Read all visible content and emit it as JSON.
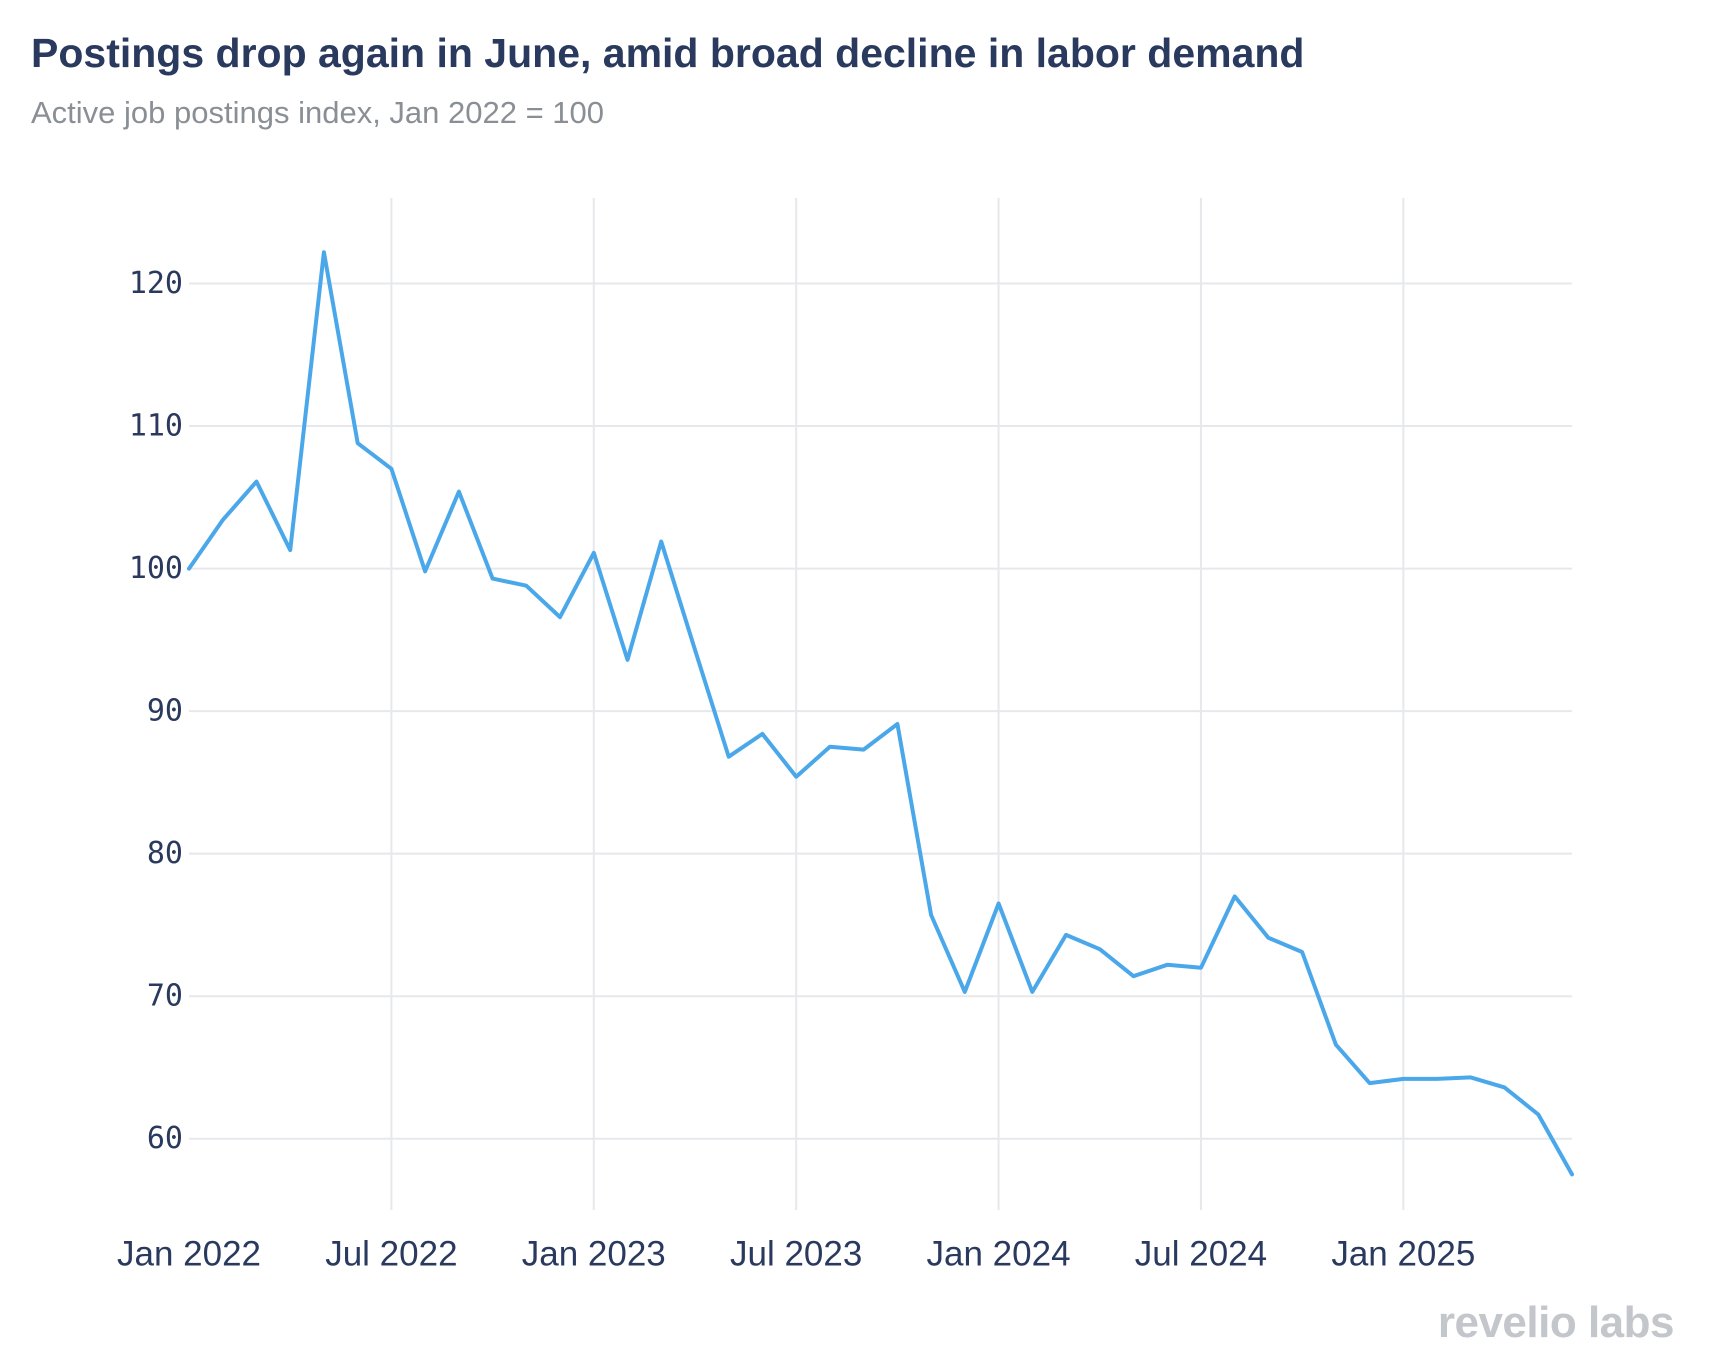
{
  "chart_data": {
    "type": "line",
    "title": "Postings drop again in June, amid broad decline in labor demand",
    "subtitle": "Active job postings index, Jan 2022 = 100",
    "xlabel": "",
    "ylabel": "",
    "x": [
      "2022-01",
      "2022-02",
      "2022-03",
      "2022-04",
      "2022-05",
      "2022-06",
      "2022-07",
      "2022-08",
      "2022-09",
      "2022-10",
      "2022-11",
      "2022-12",
      "2023-01",
      "2023-02",
      "2023-03",
      "2023-04",
      "2023-05",
      "2023-06",
      "2023-07",
      "2023-08",
      "2023-09",
      "2023-10",
      "2023-11",
      "2023-12",
      "2024-01",
      "2024-02",
      "2024-03",
      "2024-04",
      "2024-05",
      "2024-06",
      "2024-07",
      "2024-08",
      "2024-09",
      "2024-10",
      "2024-11",
      "2024-12",
      "2025-01",
      "2025-02",
      "2025-03",
      "2025-04",
      "2025-05",
      "2025-06"
    ],
    "series": [
      {
        "values": [
          100,
          103.4,
          106.1,
          101.3,
          122.2,
          108.8,
          107.0,
          99.8,
          105.4,
          99.3,
          98.8,
          96.6,
          101.1,
          93.6,
          101.9,
          94.3,
          86.8,
          88.4,
          85.4,
          87.5,
          87.3,
          89.1,
          75.7,
          70.3,
          76.5,
          70.3,
          74.3,
          73.3,
          71.4,
          72.2,
          72.0,
          77.0,
          74.1,
          73.1,
          66.6,
          63.9,
          64.2,
          64.2,
          64.3,
          63.6,
          61.7,
          57.5
        ]
      }
    ],
    "x_tick_labels": [
      {
        "x": "2022-01",
        "label": "Jan 2022"
      },
      {
        "x": "2022-07",
        "label": "Jul 2022"
      },
      {
        "x": "2023-01",
        "label": "Jan 2023"
      },
      {
        "x": "2023-07",
        "label": "Jul 2023"
      },
      {
        "x": "2024-01",
        "label": "Jan 2024"
      },
      {
        "x": "2024-07",
        "label": "Jul 2024"
      },
      {
        "x": "2025-01",
        "label": "Jan 2025"
      }
    ],
    "y_ticks": [
      60,
      70,
      80,
      90,
      100,
      110,
      120
    ],
    "ylim": [
      55,
      126
    ],
    "grid": true,
    "line_color": "#4aa8ea",
    "grid_color": "#e6e8eb"
  },
  "branding": {
    "logo_text": "revelio labs"
  }
}
